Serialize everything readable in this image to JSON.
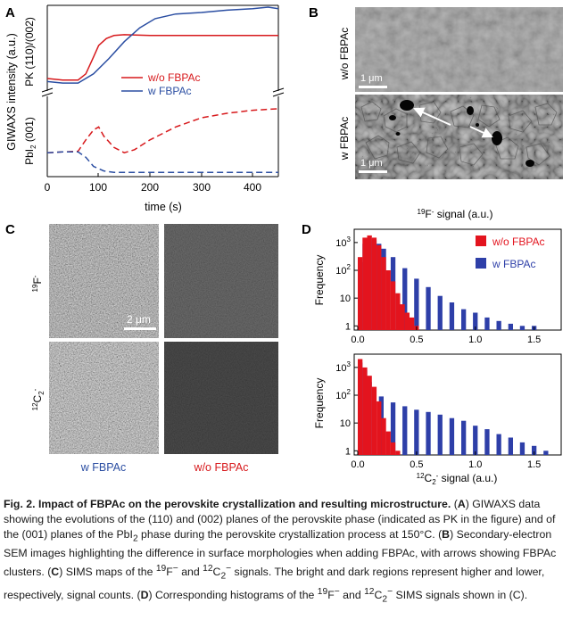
{
  "panelA": {
    "letter": "A",
    "ylabel_main": "GIWAXS intensity (a.u.)",
    "ylabel_top": "PK (110)/(002)",
    "ylabel_bottom_pre": "PbI",
    "ylabel_bottom_sub": "2",
    "ylabel_bottom_post": " (001)",
    "xlabel": "time (s)",
    "xticks": [
      "0",
      "100",
      "200",
      "300",
      "400"
    ],
    "legend": [
      {
        "label": "w/o FBPAc",
        "color": "#d7191c"
      },
      {
        "label": "w FBPAc",
        "color": "#2b4ea2"
      }
    ]
  },
  "panelB": {
    "letter": "B",
    "row_labels": [
      "w/o FBPAc",
      "w FBPAc"
    ],
    "scalebar": "1 μm"
  },
  "panelC": {
    "letter": "C",
    "row1_sup": "19",
    "row1_main": "F",
    "row1_charge": "-",
    "row2_sup": "12",
    "row2_main": "C",
    "row2_sub": "2",
    "row2_charge": "-",
    "col_labels": [
      "w FBPAc",
      "w/o FBPAc"
    ],
    "scalebar": "2 μm"
  },
  "panelD": {
    "letter": "D",
    "top_title_sup": "19",
    "top_title_main": "F",
    "top_title_charge": "-",
    "top_title_rest": " signal (a.u.)",
    "bottom_xlabel_sup": "12",
    "bottom_xlabel_main": "C",
    "bottom_xlabel_sub": "2",
    "bottom_xlabel_charge": "-",
    "bottom_xlabel_rest": " signal (a.u.)",
    "ylabel": "Frequency",
    "yticks": [
      "1",
      "10",
      "10",
      "10"
    ],
    "ytick_sups": [
      "",
      "",
      "2",
      "3"
    ],
    "xticks": [
      "0.0",
      "0.5",
      "1.0",
      "1.5"
    ],
    "legend": [
      {
        "label": "w/o FBPAc",
        "color": "#e3141e"
      },
      {
        "label": "w FBPAc",
        "color": "#2e3fa8"
      }
    ]
  },
  "chart_data": [
    {
      "type": "line",
      "panel": "A-top",
      "xlabel": "time (s)",
      "ylabel": "PK (110)/(002)",
      "xlim": [
        0,
        450
      ],
      "series": [
        {
          "name": "w/o FBPAc",
          "style": "solid",
          "x": [
            0,
            30,
            60,
            75,
            90,
            100,
            115,
            130,
            150,
            200,
            300,
            400,
            450
          ],
          "y": [
            0.14,
            0.12,
            0.12,
            0.2,
            0.42,
            0.57,
            0.66,
            0.7,
            0.71,
            0.7,
            0.7,
            0.7,
            0.7
          ]
        },
        {
          "name": "w FBPAc",
          "style": "solid",
          "x": [
            0,
            30,
            60,
            90,
            120,
            150,
            180,
            210,
            250,
            300,
            350,
            400,
            430,
            450
          ],
          "y": [
            0.1,
            0.08,
            0.08,
            0.2,
            0.4,
            0.62,
            0.8,
            0.92,
            0.98,
            1.0,
            1.03,
            1.05,
            1.07,
            1.05
          ]
        }
      ]
    },
    {
      "type": "line",
      "panel": "A-bottom",
      "xlabel": "time (s)",
      "ylabel": "PbI2 (001)",
      "xlim": [
        0,
        450
      ],
      "series": [
        {
          "name": "w/o FBPAc",
          "style": "dashed",
          "x": [
            0,
            30,
            60,
            75,
            90,
            100,
            110,
            130,
            150,
            170,
            200,
            250,
            300,
            350,
            400,
            450
          ],
          "y": [
            0.28,
            0.29,
            0.3,
            0.45,
            0.58,
            0.62,
            0.5,
            0.35,
            0.28,
            0.32,
            0.45,
            0.62,
            0.74,
            0.8,
            0.84,
            0.86
          ]
        },
        {
          "name": "w FBPAc",
          "style": "dashed",
          "x": [
            0,
            30,
            60,
            75,
            90,
            110,
            130,
            160,
            200,
            300,
            450
          ],
          "y": [
            0.28,
            0.29,
            0.29,
            0.22,
            0.1,
            0.04,
            0.02,
            0.02,
            0.02,
            0.02,
            0.02
          ]
        }
      ]
    },
    {
      "type": "bar",
      "panel": "D-top",
      "log_y": true,
      "xlim": [
        0,
        1.7
      ],
      "ylim": [
        1,
        3000
      ],
      "series": [
        {
          "name": "w/o FBPAc",
          "x": [
            0.02,
            0.06,
            0.1,
            0.14,
            0.18,
            0.22,
            0.26,
            0.3,
            0.34,
            0.38,
            0.42,
            0.46,
            0.5
          ],
          "y": [
            300,
            1500,
            1800,
            1500,
            800,
            300,
            100,
            40,
            15,
            6,
            3,
            2,
            1
          ]
        },
        {
          "name": "w FBPAc",
          "x": [
            0.02,
            0.06,
            0.1,
            0.14,
            0.18,
            0.22,
            0.3,
            0.4,
            0.5,
            0.6,
            0.7,
            0.8,
            0.9,
            1.0,
            1.1,
            1.2,
            1.3,
            1.4,
            1.5
          ],
          "y": [
            200,
            900,
            1400,
            1200,
            900,
            600,
            300,
            120,
            50,
            25,
            12,
            7,
            4,
            3,
            2,
            1.5,
            1.2,
            1,
            1
          ]
        }
      ]
    },
    {
      "type": "bar",
      "panel": "D-bottom",
      "log_y": true,
      "xlim": [
        0,
        1.7
      ],
      "ylim": [
        1,
        3000
      ],
      "series": [
        {
          "name": "w/o FBPAc",
          "x": [
            0.02,
            0.06,
            0.1,
            0.14,
            0.18,
            0.22,
            0.26,
            0.3,
            0.34
          ],
          "y": [
            2000,
            1000,
            500,
            200,
            60,
            15,
            5,
            2,
            1
          ]
        },
        {
          "name": "w FBPAc",
          "x": [
            0.02,
            0.06,
            0.1,
            0.2,
            0.3,
            0.4,
            0.5,
            0.6,
            0.7,
            0.8,
            0.9,
            1.0,
            1.1,
            1.2,
            1.3,
            1.4,
            1.5,
            1.6
          ],
          "y": [
            1500,
            800,
            300,
            90,
            55,
            40,
            30,
            25,
            20,
            15,
            12,
            8,
            6,
            4,
            3,
            2,
            1.5,
            1
          ]
        }
      ]
    }
  ],
  "caption": {
    "title": "Fig. 2. Impact of FBPAc on the perovskite crystallization and resulting microstructure.",
    "A": "A",
    "a_text_1": ") GIWAXS data showing the evolutions of the (110) and (002) planes of the perovskite phase (indicated as PK in the figure) and of the (001) planes of the PbI",
    "a_sub": "2",
    "a_text_2": " phase during the perovskite crystallization process at 150°C. (",
    "B": "B",
    "b_text": ") Secondary-electron SEM images highlighting the difference in surface morphologies when adding FBPAc, with arrows showing FBPAc clusters. (",
    "C": "C",
    "c_text_1": ") SIMS maps of the ",
    "c_sup1": "19",
    "c_f": "F",
    "c_minus1": "−",
    "c_and": " and ",
    "c_sup2": "12",
    "c_c": "C",
    "c_sub2": "2",
    "c_minus2": "−",
    "c_text_2": " signals. The bright and dark regions represent higher and lower, respectively, signal counts. (",
    "D": "D",
    "d_text_1": ") Corresponding histograms of the ",
    "d_sup1": "19",
    "d_f": "F",
    "d_minus1": "−",
    "d_and": " and ",
    "d_sup2": "12",
    "d_c": "C",
    "d_sub2": "2",
    "d_minus2": "−",
    "d_text_2": " SIMS signals shown in (C)."
  }
}
